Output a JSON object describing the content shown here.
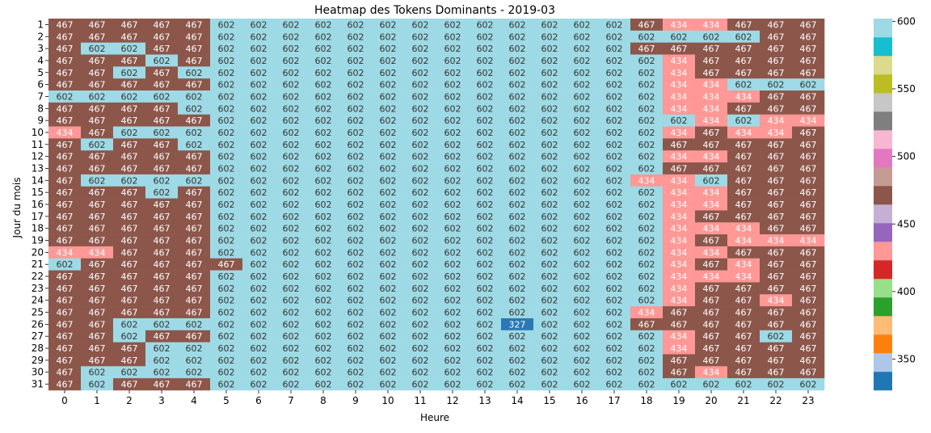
{
  "chart_data": {
    "type": "heatmap",
    "title": "Heatmap des Tokens Dominants - 2019-03",
    "xlabel": "Heure",
    "ylabel": "Jour du mois",
    "x_categories": [
      "0",
      "1",
      "2",
      "3",
      "4",
      "5",
      "6",
      "7",
      "8",
      "9",
      "10",
      "11",
      "12",
      "13",
      "14",
      "15",
      "16",
      "17",
      "18",
      "19",
      "20",
      "21",
      "22",
      "23"
    ],
    "y_categories": [
      "1",
      "2",
      "3",
      "4",
      "5",
      "6",
      "7",
      "8",
      "9",
      "10",
      "11",
      "12",
      "13",
      "14",
      "15",
      "16",
      "17",
      "18",
      "19",
      "20",
      "21",
      "22",
      "23",
      "24",
      "25",
      "26",
      "27",
      "28",
      "29",
      "30",
      "31"
    ],
    "values": [
      [
        467,
        467,
        467,
        467,
        467,
        602,
        602,
        602,
        602,
        602,
        602,
        602,
        602,
        602,
        602,
        602,
        602,
        602,
        467,
        434,
        434,
        467,
        467,
        467
      ],
      [
        467,
        467,
        467,
        467,
        467,
        602,
        602,
        602,
        602,
        602,
        602,
        602,
        602,
        602,
        602,
        602,
        602,
        602,
        602,
        602,
        602,
        602,
        467,
        467
      ],
      [
        467,
        602,
        602,
        467,
        467,
        602,
        602,
        602,
        602,
        602,
        602,
        602,
        602,
        602,
        602,
        602,
        602,
        602,
        467,
        467,
        467,
        467,
        467,
        467
      ],
      [
        467,
        467,
        467,
        602,
        467,
        602,
        602,
        602,
        602,
        602,
        602,
        602,
        602,
        602,
        602,
        602,
        602,
        602,
        602,
        434,
        467,
        467,
        467,
        467
      ],
      [
        467,
        467,
        602,
        467,
        602,
        602,
        602,
        602,
        602,
        602,
        602,
        602,
        602,
        602,
        602,
        602,
        602,
        602,
        602,
        434,
        467,
        467,
        467,
        467
      ],
      [
        467,
        467,
        467,
        467,
        467,
        602,
        602,
        602,
        602,
        602,
        602,
        602,
        602,
        602,
        602,
        602,
        602,
        602,
        602,
        434,
        434,
        602,
        602,
        602
      ],
      [
        602,
        602,
        602,
        602,
        602,
        602,
        602,
        602,
        602,
        602,
        602,
        602,
        602,
        602,
        602,
        602,
        602,
        602,
        602,
        434,
        434,
        434,
        467,
        467
      ],
      [
        467,
        467,
        467,
        467,
        602,
        602,
        602,
        602,
        602,
        602,
        602,
        602,
        602,
        602,
        602,
        602,
        602,
        602,
        602,
        434,
        434,
        467,
        467,
        467
      ],
      [
        467,
        467,
        467,
        467,
        467,
        602,
        602,
        602,
        602,
        602,
        602,
        602,
        602,
        602,
        602,
        602,
        602,
        602,
        602,
        602,
        434,
        602,
        434,
        434
      ],
      [
        434,
        467,
        602,
        602,
        602,
        602,
        602,
        602,
        602,
        602,
        602,
        602,
        602,
        602,
        602,
        602,
        602,
        602,
        602,
        434,
        467,
        434,
        434,
        467
      ],
      [
        467,
        602,
        467,
        467,
        602,
        602,
        602,
        602,
        602,
        602,
        602,
        602,
        602,
        602,
        602,
        602,
        602,
        602,
        602,
        467,
        467,
        467,
        467,
        467
      ],
      [
        467,
        467,
        467,
        467,
        467,
        602,
        602,
        602,
        602,
        602,
        602,
        602,
        602,
        602,
        602,
        602,
        602,
        602,
        602,
        434,
        434,
        467,
        467,
        467
      ],
      [
        467,
        467,
        467,
        467,
        467,
        602,
        602,
        602,
        602,
        602,
        602,
        602,
        602,
        602,
        602,
        602,
        602,
        602,
        602,
        467,
        467,
        467,
        467,
        467
      ],
      [
        467,
        602,
        602,
        602,
        602,
        602,
        602,
        602,
        602,
        602,
        602,
        602,
        602,
        602,
        602,
        602,
        602,
        602,
        434,
        434,
        602,
        467,
        467,
        467
      ],
      [
        467,
        467,
        467,
        602,
        467,
        602,
        602,
        602,
        602,
        602,
        602,
        602,
        602,
        602,
        602,
        602,
        602,
        602,
        602,
        434,
        434,
        467,
        467,
        467
      ],
      [
        467,
        467,
        467,
        467,
        467,
        602,
        602,
        602,
        602,
        602,
        602,
        602,
        602,
        602,
        602,
        602,
        602,
        602,
        602,
        434,
        434,
        467,
        467,
        467
      ],
      [
        467,
        467,
        467,
        467,
        467,
        602,
        602,
        602,
        602,
        602,
        602,
        602,
        602,
        602,
        602,
        602,
        602,
        602,
        602,
        434,
        467,
        467,
        467,
        467
      ],
      [
        467,
        467,
        467,
        467,
        467,
        602,
        602,
        602,
        602,
        602,
        602,
        602,
        602,
        602,
        602,
        602,
        602,
        602,
        602,
        434,
        434,
        434,
        467,
        467
      ],
      [
        467,
        467,
        467,
        467,
        467,
        602,
        602,
        602,
        602,
        602,
        602,
        602,
        602,
        602,
        602,
        602,
        602,
        602,
        602,
        434,
        467,
        434,
        434,
        434
      ],
      [
        434,
        434,
        467,
        467,
        467,
        602,
        602,
        602,
        602,
        602,
        602,
        602,
        602,
        602,
        602,
        602,
        602,
        602,
        602,
        434,
        434,
        467,
        467,
        467
      ],
      [
        602,
        467,
        467,
        467,
        467,
        467,
        602,
        602,
        602,
        602,
        602,
        602,
        602,
        602,
        602,
        602,
        602,
        602,
        602,
        434,
        467,
        434,
        467,
        467
      ],
      [
        467,
        467,
        467,
        467,
        467,
        602,
        602,
        602,
        602,
        602,
        602,
        602,
        602,
        602,
        602,
        602,
        602,
        602,
        602,
        434,
        434,
        434,
        467,
        467
      ],
      [
        467,
        467,
        467,
        467,
        467,
        602,
        602,
        602,
        602,
        602,
        602,
        602,
        602,
        602,
        602,
        602,
        602,
        602,
        602,
        434,
        467,
        467,
        467,
        467
      ],
      [
        467,
        467,
        467,
        467,
        467,
        602,
        602,
        602,
        602,
        602,
        602,
        602,
        602,
        602,
        602,
        602,
        602,
        602,
        602,
        434,
        467,
        467,
        434,
        467
      ],
      [
        467,
        467,
        467,
        467,
        467,
        602,
        602,
        602,
        602,
        602,
        602,
        602,
        602,
        602,
        602,
        602,
        602,
        602,
        434,
        467,
        467,
        467,
        467,
        467
      ],
      [
        467,
        467,
        602,
        602,
        602,
        602,
        602,
        602,
        602,
        602,
        602,
        602,
        602,
        602,
        327,
        602,
        602,
        602,
        467,
        467,
        467,
        467,
        467,
        467
      ],
      [
        467,
        467,
        602,
        467,
        467,
        602,
        602,
        602,
        602,
        602,
        602,
        602,
        602,
        602,
        602,
        602,
        602,
        602,
        602,
        434,
        467,
        467,
        602,
        467
      ],
      [
        467,
        467,
        467,
        602,
        602,
        602,
        602,
        602,
        602,
        602,
        602,
        602,
        602,
        602,
        602,
        602,
        602,
        602,
        602,
        434,
        467,
        467,
        467,
        467
      ],
      [
        467,
        467,
        467,
        602,
        602,
        602,
        602,
        602,
        602,
        602,
        602,
        602,
        602,
        602,
        602,
        602,
        602,
        602,
        602,
        467,
        467,
        467,
        467,
        467
      ],
      [
        467,
        602,
        602,
        602,
        602,
        602,
        602,
        602,
        602,
        602,
        602,
        602,
        602,
        602,
        602,
        602,
        602,
        602,
        602,
        467,
        434,
        467,
        467,
        467
      ],
      [
        467,
        602,
        467,
        467,
        467,
        602,
        602,
        602,
        602,
        602,
        602,
        602,
        602,
        602,
        602,
        602,
        602,
        602,
        602,
        602,
        602,
        602,
        602,
        602
      ]
    ],
    "value_colors": {
      "327": "#2a78b5",
      "434": "#ff9896",
      "467": "#8c564b",
      "602": "#9edae5"
    },
    "colorbar": {
      "colormap": "tab20",
      "range": [
        327,
        602
      ],
      "ticks": [
        350,
        400,
        450,
        500,
        550,
        600
      ],
      "colors": [
        "#1f77b4",
        "#aec7e8",
        "#ff7f0e",
        "#ffbb78",
        "#2ca02c",
        "#98df8a",
        "#d62728",
        "#ff9896",
        "#9467bd",
        "#c5b0d5",
        "#8c564b",
        "#c49c94",
        "#e377c2",
        "#f7b6d2",
        "#7f7f7f",
        "#c7c7c7",
        "#bcbd22",
        "#dbdb8d",
        "#17becf",
        "#9edae5"
      ]
    },
    "light_cells_dark_text": true,
    "grid": false
  }
}
